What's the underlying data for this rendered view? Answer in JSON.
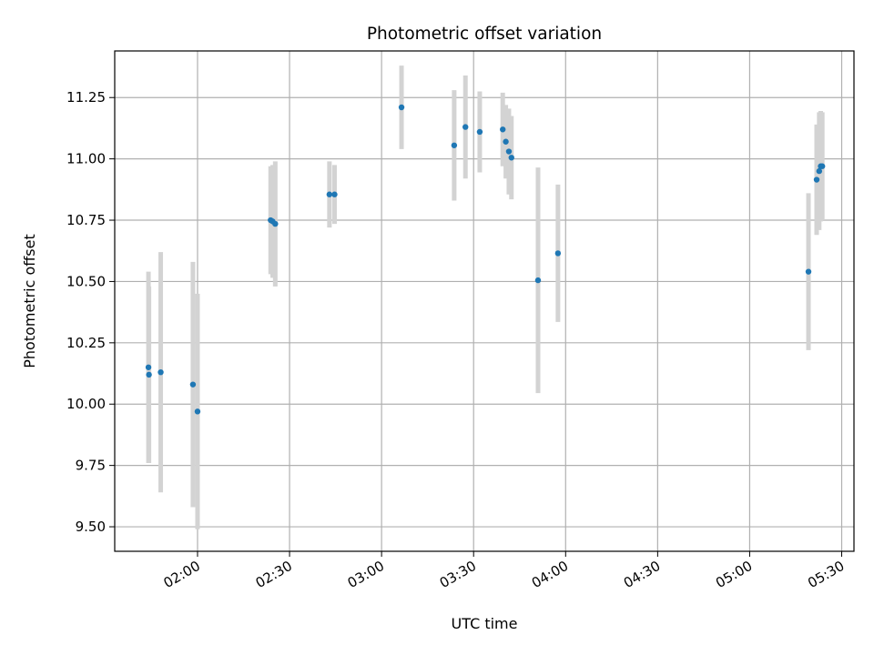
{
  "chart_data": {
    "type": "scatter",
    "title": "Photometric offset variation",
    "xlabel": "UTC time",
    "ylabel": "Photometric offset",
    "x_is_time": true,
    "xlim": [
      "01:33",
      "05:34"
    ],
    "ylim": [
      9.4,
      11.44
    ],
    "x_ticks": [
      "02:00",
      "02:30",
      "03:00",
      "03:30",
      "04:00",
      "04:30",
      "05:00",
      "05:30"
    ],
    "y_ticks": [
      9.5,
      9.75,
      10.0,
      10.25,
      10.5,
      10.75,
      11.0,
      11.25
    ],
    "y_tick_labels": [
      "9.50",
      "9.75",
      "10.00",
      "10.25",
      "10.50",
      "10.75",
      "11.00",
      "11.25"
    ],
    "grid": true,
    "colors": {
      "points": "#1f77b4",
      "error_bars": "#d3d3d3",
      "grid": "#b0b0b0"
    },
    "series": [
      {
        "points": [
          {
            "t": "01:44:00",
            "y": 10.15,
            "err": 0.39
          },
          {
            "t": "01:44:10",
            "y": 10.12,
            "err": 0.36
          },
          {
            "t": "01:48:00",
            "y": 10.13,
            "err": 0.49
          },
          {
            "t": "01:58:30",
            "y": 10.08,
            "err": 0.5
          },
          {
            "t": "02:00:00",
            "y": 9.97,
            "err": 0.48
          },
          {
            "t": "02:23:50",
            "y": 10.75,
            "err": 0.22
          },
          {
            "t": "02:24:30",
            "y": 10.745,
            "err": 0.23
          },
          {
            "t": "02:25:20",
            "y": 10.735,
            "err": 0.255
          },
          {
            "t": "02:43:00",
            "y": 10.855,
            "err": 0.135
          },
          {
            "t": "02:44:40",
            "y": 10.855,
            "err": 0.12
          },
          {
            "t": "03:06:30",
            "y": 11.21,
            "err": 0.17
          },
          {
            "t": "03:23:40",
            "y": 11.055,
            "err": 0.225
          },
          {
            "t": "03:27:20",
            "y": 11.13,
            "err": 0.21
          },
          {
            "t": "03:32:00",
            "y": 11.11,
            "err": 0.165
          },
          {
            "t": "03:39:30",
            "y": 11.12,
            "err": 0.15
          },
          {
            "t": "03:40:30",
            "y": 11.07,
            "err": 0.15
          },
          {
            "t": "03:41:30",
            "y": 11.03,
            "err": 0.175
          },
          {
            "t": "03:42:20",
            "y": 11.005,
            "err": 0.17
          },
          {
            "t": "03:51:00",
            "y": 10.505,
            "err": 0.46
          },
          {
            "t": "03:57:30",
            "y": 10.615,
            "err": 0.28
          },
          {
            "t": "05:19:10",
            "y": 10.54,
            "err": 0.32
          },
          {
            "t": "05:21:50",
            "y": 10.915,
            "err": 0.225
          },
          {
            "t": "05:22:40",
            "y": 10.95,
            "err": 0.24
          },
          {
            "t": "05:23:10",
            "y": 10.97,
            "err": 0.225
          },
          {
            "t": "05:23:40",
            "y": 10.97,
            "err": 0.22
          }
        ]
      }
    ]
  }
}
